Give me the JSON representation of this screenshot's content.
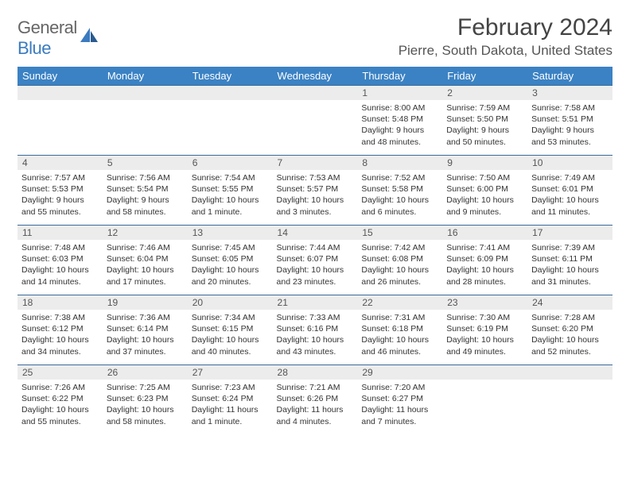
{
  "logo": {
    "text_gray": "General",
    "text_blue": "Blue"
  },
  "title": "February 2024",
  "location": "Pierre, South Dakota, United States",
  "colors": {
    "header_blue": "#3b82c4",
    "row_border": "#3b6a9a",
    "daynum_bg": "#ececec",
    "text": "#333333"
  },
  "day_headers": [
    "Sunday",
    "Monday",
    "Tuesday",
    "Wednesday",
    "Thursday",
    "Friday",
    "Saturday"
  ],
  "weeks": [
    [
      null,
      null,
      null,
      null,
      {
        "n": "1",
        "sr": "8:00 AM",
        "ss": "5:48 PM",
        "dl": "9 hours and 48 minutes."
      },
      {
        "n": "2",
        "sr": "7:59 AM",
        "ss": "5:50 PM",
        "dl": "9 hours and 50 minutes."
      },
      {
        "n": "3",
        "sr": "7:58 AM",
        "ss": "5:51 PM",
        "dl": "9 hours and 53 minutes."
      }
    ],
    [
      {
        "n": "4",
        "sr": "7:57 AM",
        "ss": "5:53 PM",
        "dl": "9 hours and 55 minutes."
      },
      {
        "n": "5",
        "sr": "7:56 AM",
        "ss": "5:54 PM",
        "dl": "9 hours and 58 minutes."
      },
      {
        "n": "6",
        "sr": "7:54 AM",
        "ss": "5:55 PM",
        "dl": "10 hours and 1 minute."
      },
      {
        "n": "7",
        "sr": "7:53 AM",
        "ss": "5:57 PM",
        "dl": "10 hours and 3 minutes."
      },
      {
        "n": "8",
        "sr": "7:52 AM",
        "ss": "5:58 PM",
        "dl": "10 hours and 6 minutes."
      },
      {
        "n": "9",
        "sr": "7:50 AM",
        "ss": "6:00 PM",
        "dl": "10 hours and 9 minutes."
      },
      {
        "n": "10",
        "sr": "7:49 AM",
        "ss": "6:01 PM",
        "dl": "10 hours and 11 minutes."
      }
    ],
    [
      {
        "n": "11",
        "sr": "7:48 AM",
        "ss": "6:03 PM",
        "dl": "10 hours and 14 minutes."
      },
      {
        "n": "12",
        "sr": "7:46 AM",
        "ss": "6:04 PM",
        "dl": "10 hours and 17 minutes."
      },
      {
        "n": "13",
        "sr": "7:45 AM",
        "ss": "6:05 PM",
        "dl": "10 hours and 20 minutes."
      },
      {
        "n": "14",
        "sr": "7:44 AM",
        "ss": "6:07 PM",
        "dl": "10 hours and 23 minutes."
      },
      {
        "n": "15",
        "sr": "7:42 AM",
        "ss": "6:08 PM",
        "dl": "10 hours and 26 minutes."
      },
      {
        "n": "16",
        "sr": "7:41 AM",
        "ss": "6:09 PM",
        "dl": "10 hours and 28 minutes."
      },
      {
        "n": "17",
        "sr": "7:39 AM",
        "ss": "6:11 PM",
        "dl": "10 hours and 31 minutes."
      }
    ],
    [
      {
        "n": "18",
        "sr": "7:38 AM",
        "ss": "6:12 PM",
        "dl": "10 hours and 34 minutes."
      },
      {
        "n": "19",
        "sr": "7:36 AM",
        "ss": "6:14 PM",
        "dl": "10 hours and 37 minutes."
      },
      {
        "n": "20",
        "sr": "7:34 AM",
        "ss": "6:15 PM",
        "dl": "10 hours and 40 minutes."
      },
      {
        "n": "21",
        "sr": "7:33 AM",
        "ss": "6:16 PM",
        "dl": "10 hours and 43 minutes."
      },
      {
        "n": "22",
        "sr": "7:31 AM",
        "ss": "6:18 PM",
        "dl": "10 hours and 46 minutes."
      },
      {
        "n": "23",
        "sr": "7:30 AM",
        "ss": "6:19 PM",
        "dl": "10 hours and 49 minutes."
      },
      {
        "n": "24",
        "sr": "7:28 AM",
        "ss": "6:20 PM",
        "dl": "10 hours and 52 minutes."
      }
    ],
    [
      {
        "n": "25",
        "sr": "7:26 AM",
        "ss": "6:22 PM",
        "dl": "10 hours and 55 minutes."
      },
      {
        "n": "26",
        "sr": "7:25 AM",
        "ss": "6:23 PM",
        "dl": "10 hours and 58 minutes."
      },
      {
        "n": "27",
        "sr": "7:23 AM",
        "ss": "6:24 PM",
        "dl": "11 hours and 1 minute."
      },
      {
        "n": "28",
        "sr": "7:21 AM",
        "ss": "6:26 PM",
        "dl": "11 hours and 4 minutes."
      },
      {
        "n": "29",
        "sr": "7:20 AM",
        "ss": "6:27 PM",
        "dl": "11 hours and 7 minutes."
      },
      null,
      null
    ]
  ],
  "labels": {
    "sunrise": "Sunrise: ",
    "sunset": "Sunset: ",
    "daylight": "Daylight: "
  }
}
